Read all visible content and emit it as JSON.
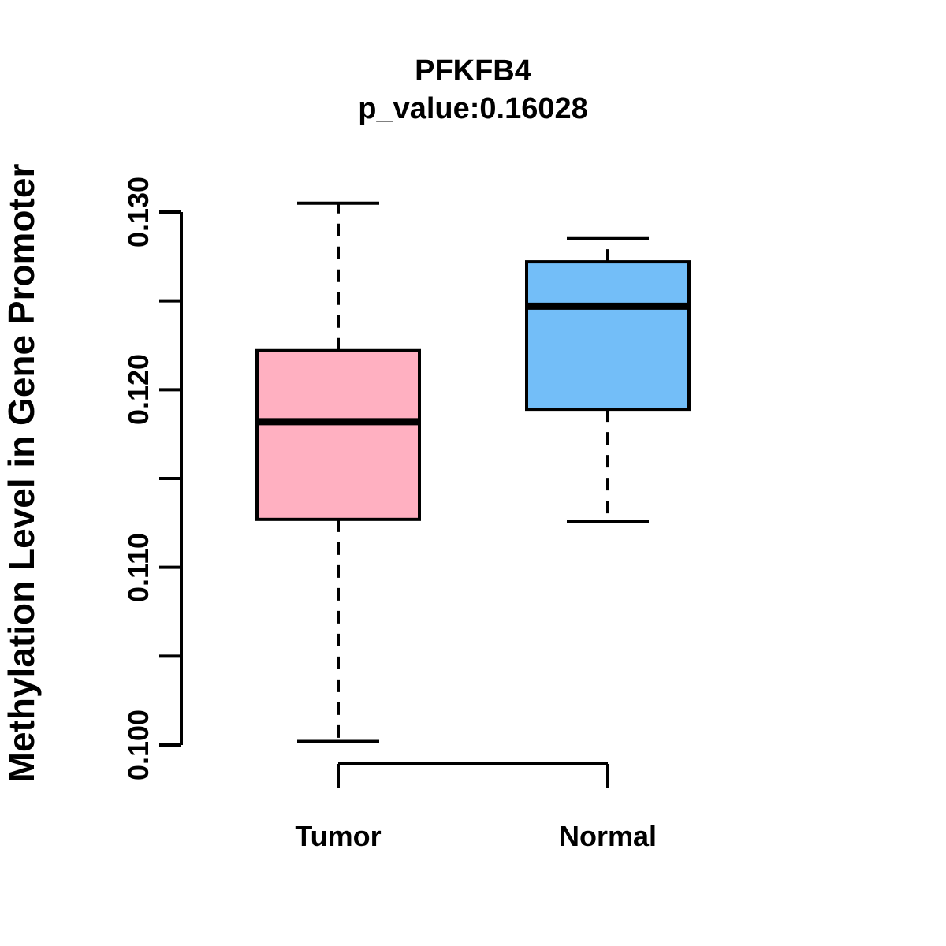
{
  "chart_data": {
    "type": "boxplot",
    "title": "PFKFB4",
    "subtitle": "p_value:0.16028",
    "ylabel": "Methylation Level in Gene Promoter",
    "xlabel": "",
    "categories": [
      "Tumor",
      "Normal"
    ],
    "series": [
      {
        "name": "Tumor",
        "fill_color": "#FFB0C1",
        "border_color": "#000000",
        "whisker_low": 0.1002,
        "q1": 0.1127,
        "median": 0.1182,
        "q3": 0.1222,
        "whisker_high": 0.1305,
        "outliers": []
      },
      {
        "name": "Normal",
        "fill_color": "#73BEF8",
        "border_color": "#000000",
        "whisker_low": 0.1126,
        "q1": 0.1189,
        "median": 0.1247,
        "q3": 0.1272,
        "whisker_high": 0.1285,
        "outliers": []
      }
    ],
    "yticks": [
      {
        "value": 0.1,
        "label": "0.100"
      },
      {
        "value": 0.105,
        "label": ""
      },
      {
        "value": 0.11,
        "label": "0.110"
      },
      {
        "value": 0.115,
        "label": ""
      },
      {
        "value": 0.12,
        "label": "0.120"
      },
      {
        "value": 0.125,
        "label": ""
      },
      {
        "value": 0.13,
        "label": "0.130"
      }
    ],
    "ylim": [
      0.1,
      0.13
    ],
    "axis_color": "#000000",
    "whisker_style": "dashed",
    "grid": false,
    "legend_position": "none"
  }
}
